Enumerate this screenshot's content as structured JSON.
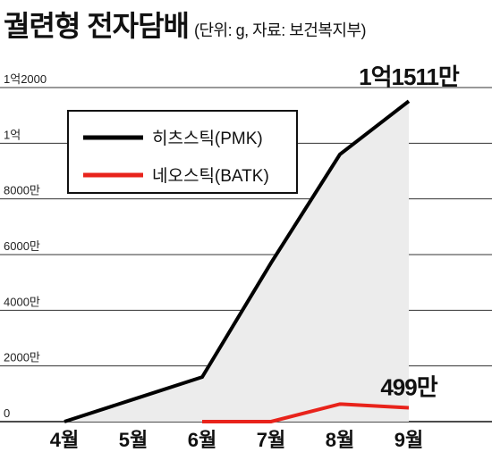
{
  "title": {
    "main": "궐련형  전자담배",
    "subtitle": "(단위: g, 자료: 보건복지부)"
  },
  "chart_data": {
    "type": "line",
    "title": "궐련형 전자담배",
    "subtitle": "(단위: g, 자료: 보건복지부)",
    "categories": [
      "4월",
      "5월",
      "6월",
      "7월",
      "8월",
      "9월"
    ],
    "y_ticks": [
      {
        "value": 0,
        "label": "0"
      },
      {
        "value": 20000000,
        "label": "2000만"
      },
      {
        "value": 40000000,
        "label": "4000만"
      },
      {
        "value": 60000000,
        "label": "6000만"
      },
      {
        "value": 80000000,
        "label": "8000만"
      },
      {
        "value": 100000000,
        "label": "1억"
      },
      {
        "value": 120000000,
        "label": "1억2000"
      }
    ],
    "ylim": [
      0,
      120000000
    ],
    "grid": true,
    "legend_position": "top-left",
    "series": [
      {
        "name": "히츠스틱(PMK)",
        "color": "#000000",
        "values": [
          0,
          8000000,
          16000000,
          57000000,
          96000000,
          115110000
        ]
      },
      {
        "name": "네오스틱(BATK)",
        "color": "#e8231b",
        "values": [
          null,
          null,
          0,
          0,
          6300000,
          4990000
        ]
      }
    ],
    "annotations": [
      {
        "label": "1억1511만",
        "series": 0,
        "index": 5
      },
      {
        "label": "499만",
        "series": 1,
        "index": 5
      }
    ]
  }
}
